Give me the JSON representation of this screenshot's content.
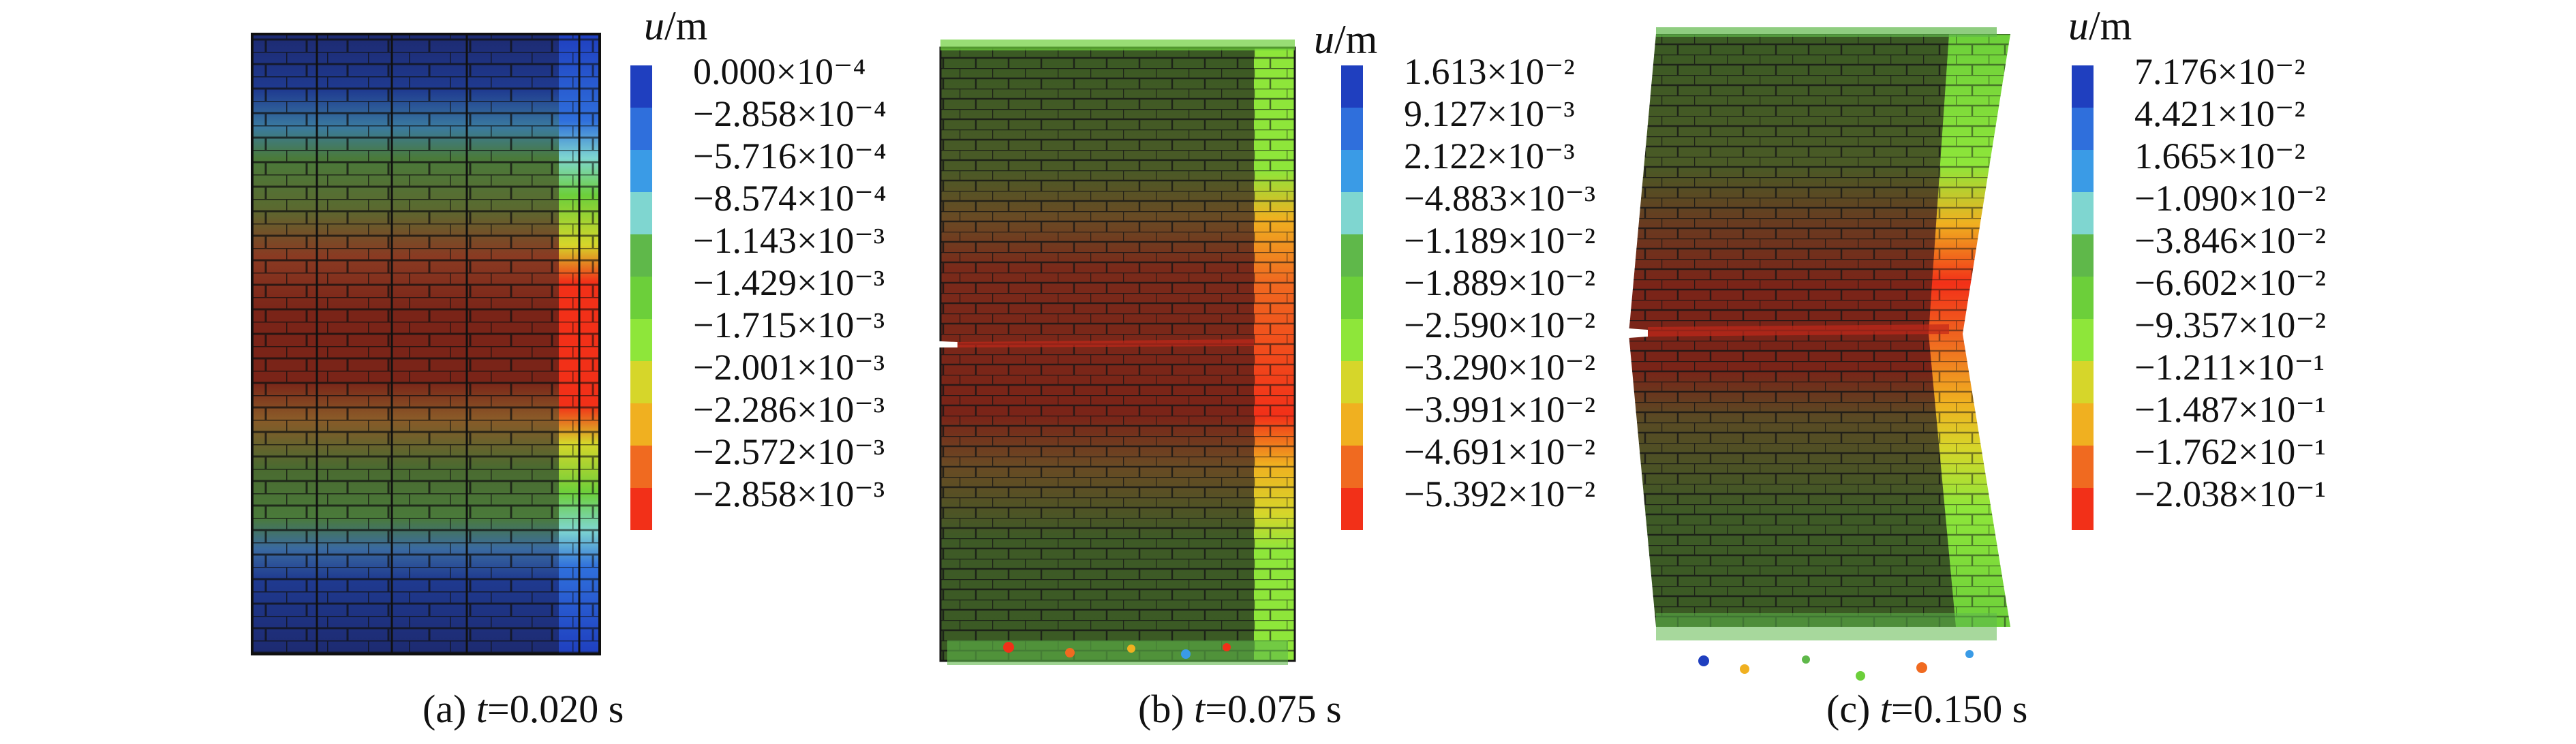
{
  "colormap": [
    "#1f3fbf",
    "#2f6fdc",
    "#3a9be6",
    "#7fd6d0",
    "#5fb84a",
    "#6ccf3a",
    "#8ee63a",
    "#d6d62a",
    "#f0b020",
    "#f06a20",
    "#f23018"
  ],
  "panels": [
    {
      "id": "a",
      "legend_title_var": "u",
      "legend_title_unit": "/m",
      "legend_values": [
        "0.000×10⁻⁴",
        "−2.858×10⁻⁴",
        "−5.716×10⁻⁴",
        "−8.574×10⁻⁴",
        "−1.143×10⁻³",
        "−1.429×10⁻³",
        "−1.715×10⁻³",
        "−2.001×10⁻³",
        "−2.286×10⁻³",
        "−2.572×10⁻³",
        "−2.858×10⁻³"
      ],
      "caption_prefix": "(a) ",
      "caption_var": "t",
      "caption_value": "=0.020 s"
    },
    {
      "id": "b",
      "legend_title_var": "u",
      "legend_title_unit": "/m",
      "legend_values": [
        "1.613×10⁻²",
        "9.127×10⁻³",
        "2.122×10⁻³",
        "−4.883×10⁻³",
        "−1.189×10⁻²",
        "−1.889×10⁻²",
        "−2.590×10⁻²",
        "−3.290×10⁻²",
        "−3.991×10⁻²",
        "−4.691×10⁻²",
        "−5.392×10⁻²"
      ],
      "caption_prefix": "(b) ",
      "caption_var": "t",
      "caption_value": "=0.075 s"
    },
    {
      "id": "c",
      "legend_title_var": "u",
      "legend_title_unit": "/m",
      "legend_values": [
        "7.176×10⁻²",
        "4.421×10⁻²",
        "1.665×10⁻²",
        "−1.090×10⁻²",
        "−3.846×10⁻²",
        "−6.602×10⁻²",
        "−9.357×10⁻²",
        "−1.211×10⁻¹",
        "−1.487×10⁻¹",
        "−1.762×10⁻¹",
        "−2.038×10⁻¹"
      ],
      "caption_prefix": "(c) ",
      "caption_var": "t",
      "caption_value": "=0.150 s"
    }
  ]
}
